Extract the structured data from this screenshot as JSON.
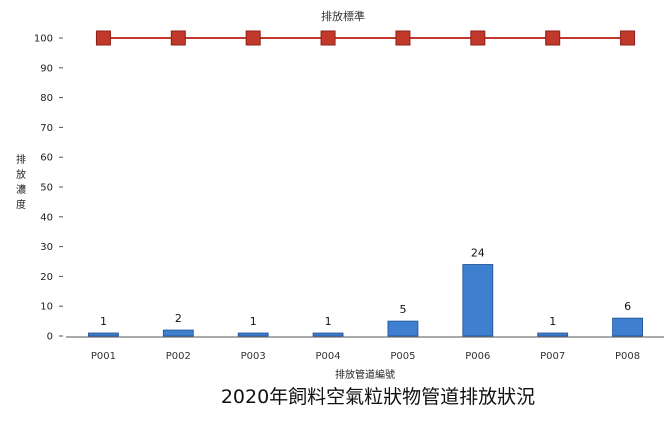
{
  "chart_data": {
    "type": "bar",
    "title": "2020年飼料空氣粒狀物管道排放狀況",
    "standard_label": "排放標準",
    "xlabel": "排放管道編號",
    "ylabel": "排放濃度",
    "categories": [
      "P001",
      "P002",
      "P003",
      "P004",
      "P005",
      "P006",
      "P007",
      "P008"
    ],
    "series": [
      {
        "values": [
          1,
          2,
          1,
          1,
          5,
          24,
          1,
          6
        ]
      },
      {
        "values": [
          100,
          100,
          100,
          100,
          100,
          100,
          100,
          100
        ]
      }
    ],
    "y_ticks": [
      0,
      10,
      20,
      30,
      40,
      50,
      60,
      70,
      80,
      90,
      100
    ],
    "ylim": [
      0,
      100
    ],
    "grid": false,
    "legend": "none"
  },
  "colors": {
    "bar_fill": "#3f7fd0",
    "bar_stroke": "#1f4f96",
    "line": "#c0392b",
    "marker": "#c0392b",
    "marker_stroke": "#8e1f17",
    "axis": "#555555"
  }
}
